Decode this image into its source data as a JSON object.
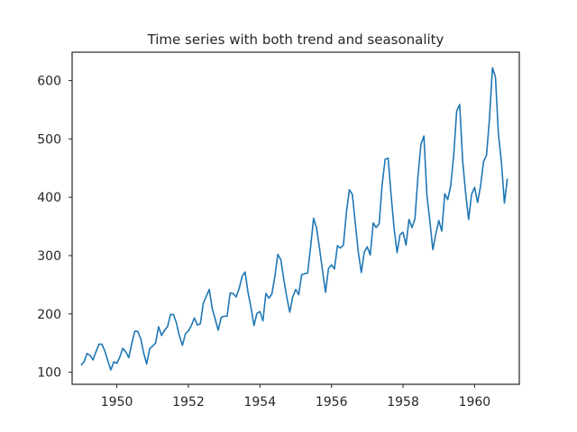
{
  "chart_data": {
    "type": "line",
    "title": "Time series with both trend and seasonality",
    "xlabel": "",
    "ylabel": "",
    "x_start": "1949-01",
    "x_frequency": "monthly",
    "xlim": [
      "1948-10",
      "1961-04"
    ],
    "ylim": [
      79.3,
      648.7
    ],
    "xticks": [
      1950,
      1952,
      1954,
      1956,
      1958,
      1960
    ],
    "xtick_labels": [
      "1950",
      "1952",
      "1954",
      "1956",
      "1958",
      "1960"
    ],
    "yticks": [
      100,
      200,
      300,
      400,
      500,
      600
    ],
    "ytick_labels": [
      "100",
      "200",
      "300",
      "400",
      "500",
      "600"
    ],
    "grid": false,
    "line_color": "#1f77b4",
    "series": [
      {
        "values": [
          112,
          118,
          132,
          129,
          121,
          135,
          148,
          148,
          136,
          119,
          104,
          118,
          115,
          126,
          141,
          135,
          125,
          149,
          170,
          170,
          158,
          133,
          114,
          140,
          145,
          150,
          178,
          163,
          172,
          178,
          199,
          199,
          184,
          162,
          146,
          166,
          171,
          180,
          193,
          181,
          183,
          218,
          230,
          242,
          209,
          191,
          172,
          194,
          196,
          196,
          236,
          235,
          229,
          243,
          264,
          272,
          237,
          211,
          180,
          201,
          204,
          188,
          235,
          227,
          234,
          264,
          302,
          293,
          259,
          229,
          203,
          229,
          242,
          233,
          267,
          269,
          270,
          315,
          364,
          347,
          312,
          274,
          237,
          278,
          284,
          277,
          317,
          313,
          318,
          374,
          413,
          405,
          355,
          306,
          271,
          306,
          315,
          301,
          356,
          348,
          355,
          422,
          465,
          467,
          404,
          347,
          305,
          336,
          340,
          318,
          362,
          348,
          363,
          435,
          491,
          505,
          404,
          359,
          310,
          337,
          360,
          342,
          406,
          396,
          420,
          472,
          548,
          559,
          463,
          407,
          362,
          405,
          417,
          391,
          419,
          461,
          472,
          535,
          622,
          606,
          508,
          461,
          390,
          432
        ]
      }
    ]
  }
}
